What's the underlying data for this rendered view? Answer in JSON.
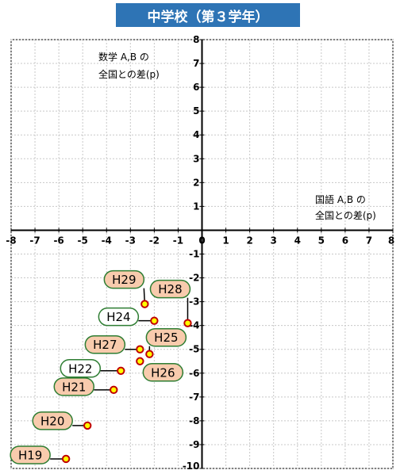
{
  "title": "中学校（第３学年）",
  "chart_data": {
    "type": "scatter",
    "title": "中学校（第３学年）",
    "xlabel": [
      "国語 A,B の",
      "全国との差(p)"
    ],
    "ylabel": [
      "数学 A,B の",
      "全国との差(p)"
    ],
    "xlim": [
      -8,
      8
    ],
    "ylim": [
      -10,
      8
    ],
    "xticks": [
      -8,
      -7,
      -6,
      -5,
      -4,
      -3,
      -2,
      -1,
      0,
      1,
      2,
      3,
      4,
      5,
      6,
      7,
      8
    ],
    "yticks": [
      -10,
      -9,
      -8,
      -7,
      -6,
      -5,
      -4,
      -3,
      -2,
      -1,
      0,
      1,
      2,
      3,
      4,
      5,
      6,
      7,
      8
    ],
    "grid": true,
    "points": [
      {
        "label": "H19",
        "x": -5.7,
        "y": -9.6,
        "style": "orange"
      },
      {
        "label": "H20",
        "x": -4.8,
        "y": -8.2,
        "style": "orange"
      },
      {
        "label": "H21",
        "x": -3.7,
        "y": -6.7,
        "style": "orange"
      },
      {
        "label": "H22",
        "x": -3.4,
        "y": -5.9,
        "style": "white"
      },
      {
        "label": "H24",
        "x": -2.0,
        "y": -3.8,
        "style": "white"
      },
      {
        "label": "H25",
        "x": -2.2,
        "y": -5.2,
        "style": "orange"
      },
      {
        "label": "H26",
        "x": -2.6,
        "y": -5.5,
        "style": "orange"
      },
      {
        "label": "H27",
        "x": -2.6,
        "y": -5.0,
        "style": "orange"
      },
      {
        "label": "H28",
        "x": -0.6,
        "y": -3.9,
        "style": "orange"
      },
      {
        "label": "H29",
        "x": -2.4,
        "y": -3.1,
        "style": "orange"
      }
    ]
  },
  "colors": {
    "title_bg": "#2e74b5",
    "label_orange_fill": "#f8cbad",
    "label_white_fill": "#ffffff",
    "label_border": "#2e7d32",
    "marker_fill": "#ffff00",
    "marker_edge": "#c00000",
    "grid": "#c8c8c8"
  }
}
